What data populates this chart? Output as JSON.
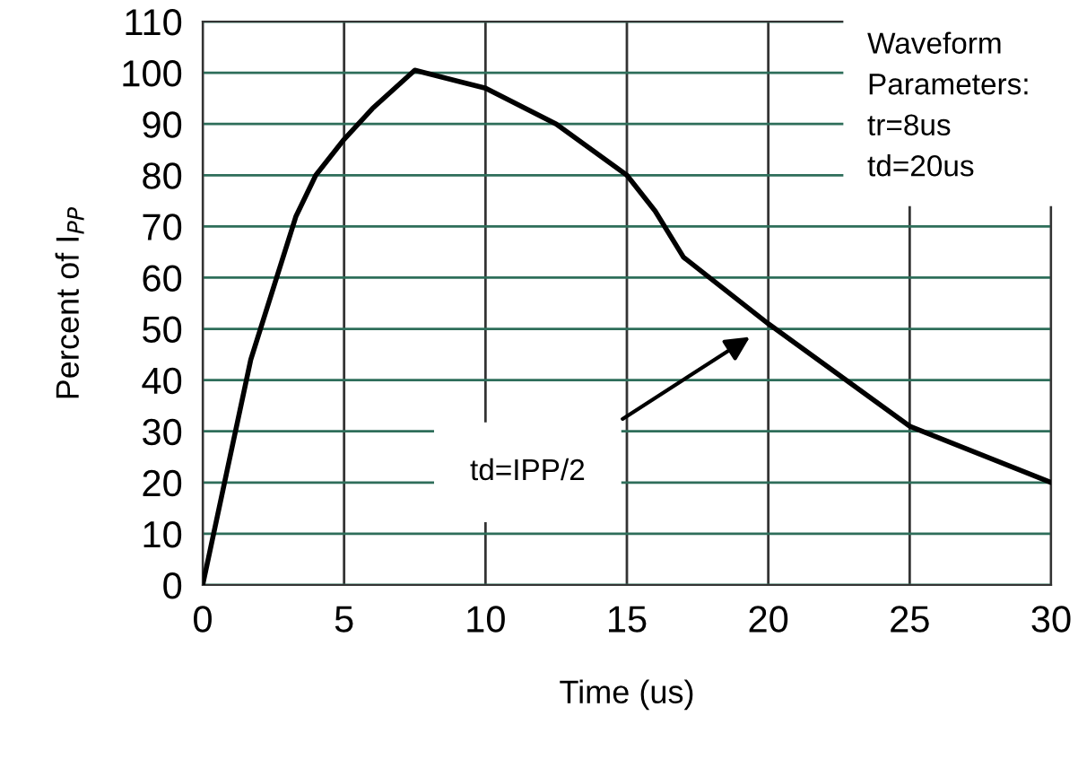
{
  "chart_data": {
    "type": "line",
    "xlabel": "Time (us)",
    "ylabel": "Percent of I$_{PP}$",
    "series": [
      {
        "color": "#000000",
        "x": [
          0,
          1.7,
          3.3,
          4,
          5,
          6,
          7.5,
          10,
          12.5,
          15,
          16,
          17,
          20,
          25,
          30
        ],
        "values": [
          0,
          44,
          72,
          80,
          87,
          93,
          100.5,
          97,
          90,
          80,
          73,
          64,
          51,
          31,
          20
        ]
      }
    ],
    "xlim": [
      0,
      30
    ],
    "ylim": [
      0,
      110
    ],
    "xticks": [
      0,
      5,
      10,
      15,
      20,
      25,
      30
    ],
    "yticks": [
      0,
      10,
      20,
      30,
      40,
      50,
      60,
      70,
      80,
      90,
      100,
      110
    ],
    "grid": true,
    "marker": "none",
    "line_style": "solid",
    "annotations": [
      "Waveform\nParameters:\ntr=8us\ntd=20us",
      "td=IPP/2"
    ]
  }
}
